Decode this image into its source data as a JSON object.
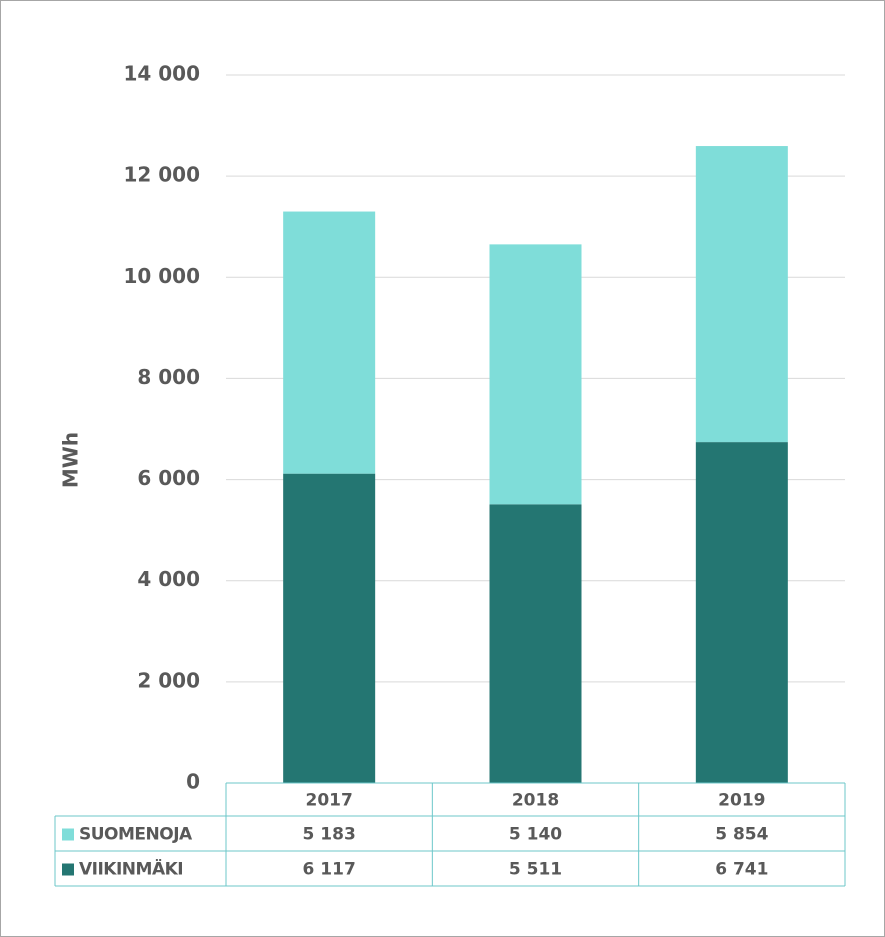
{
  "chart_data": {
    "type": "stacked_bar",
    "y_label": "MWh",
    "categories": [
      "2017",
      "2018",
      "2019"
    ],
    "series": [
      {
        "name": "SUOMENOJA",
        "color": "#7fddd9",
        "values": [
          5183,
          5140,
          5854
        ],
        "value_labels": [
          "5 183",
          "5 140",
          "5 854"
        ]
      },
      {
        "name": "VIIKINMÄKI",
        "color": "#247672",
        "values": [
          6117,
          5511,
          6741
        ],
        "value_labels": [
          "6 117",
          "5 511",
          "6 741"
        ]
      }
    ],
    "ylim": [
      0,
      14000
    ],
    "yticks": [
      0,
      {
        "value": 2000,
        "label": "2 000"
      },
      {
        "value": 4000,
        "label": "4 000"
      },
      {
        "value": 6000,
        "label": "6 000"
      },
      {
        "value": 8000,
        "label": "8 000"
      },
      {
        "value": 10000,
        "label": "10 000"
      },
      {
        "value": 12000,
        "label": "12 000"
      },
      {
        "value": 14000,
        "label": "14 000"
      }
    ],
    "grid": true
  }
}
